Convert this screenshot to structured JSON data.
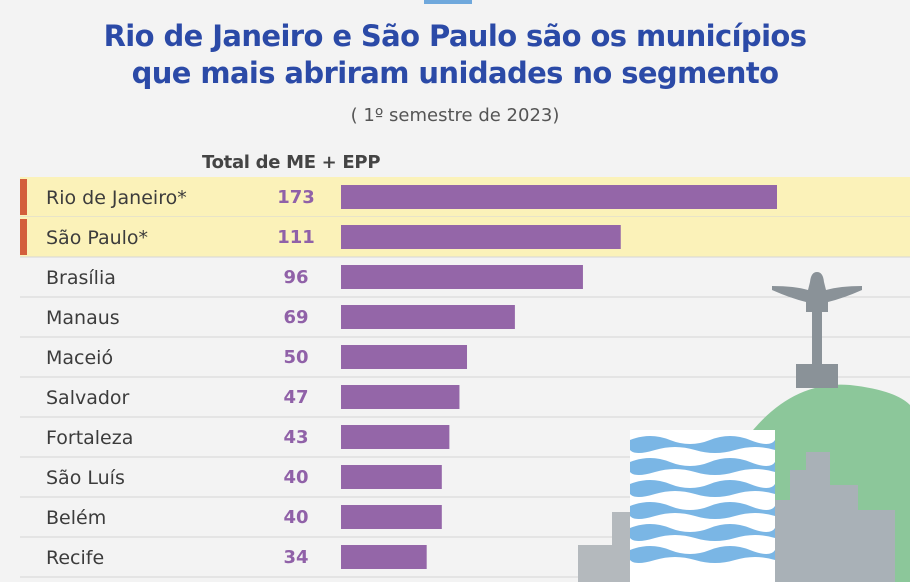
{
  "header": {
    "title_line1": "Rio de Janeiro e São Paulo são os municípios",
    "title_line2": "que mais abriram unidades no segmento",
    "subtitle": "( 1º semestre de 2023)",
    "column_header": "Total de ME + EPP"
  },
  "colors": {
    "bar": "#9466a8",
    "highlight_row": "#fbf2b9",
    "highlight_marker": "#d35f3c",
    "value_text": "#9061a8",
    "title": "#2b4aa7"
  },
  "chart_data": {
    "type": "bar",
    "orientation": "horizontal",
    "title": "Rio de Janeiro e São Paulo são os municípios que mais abriram unidades no segmento",
    "subtitle": "( 1º semestre de 2023)",
    "value_header": "Total de ME + EPP",
    "categories": [
      "Rio de Janeiro*",
      "São Paulo*",
      "Brasília",
      "Manaus",
      "Maceió",
      "Salvador",
      "Fortaleza",
      "São Luís",
      "Belém",
      "Recife"
    ],
    "values": [
      173,
      111,
      96,
      69,
      50,
      47,
      43,
      40,
      40,
      34
    ],
    "highlighted": [
      "Rio de Janeiro*",
      "São Paulo*"
    ],
    "xlim": [
      0,
      173
    ],
    "grid": false,
    "legend": "none"
  }
}
